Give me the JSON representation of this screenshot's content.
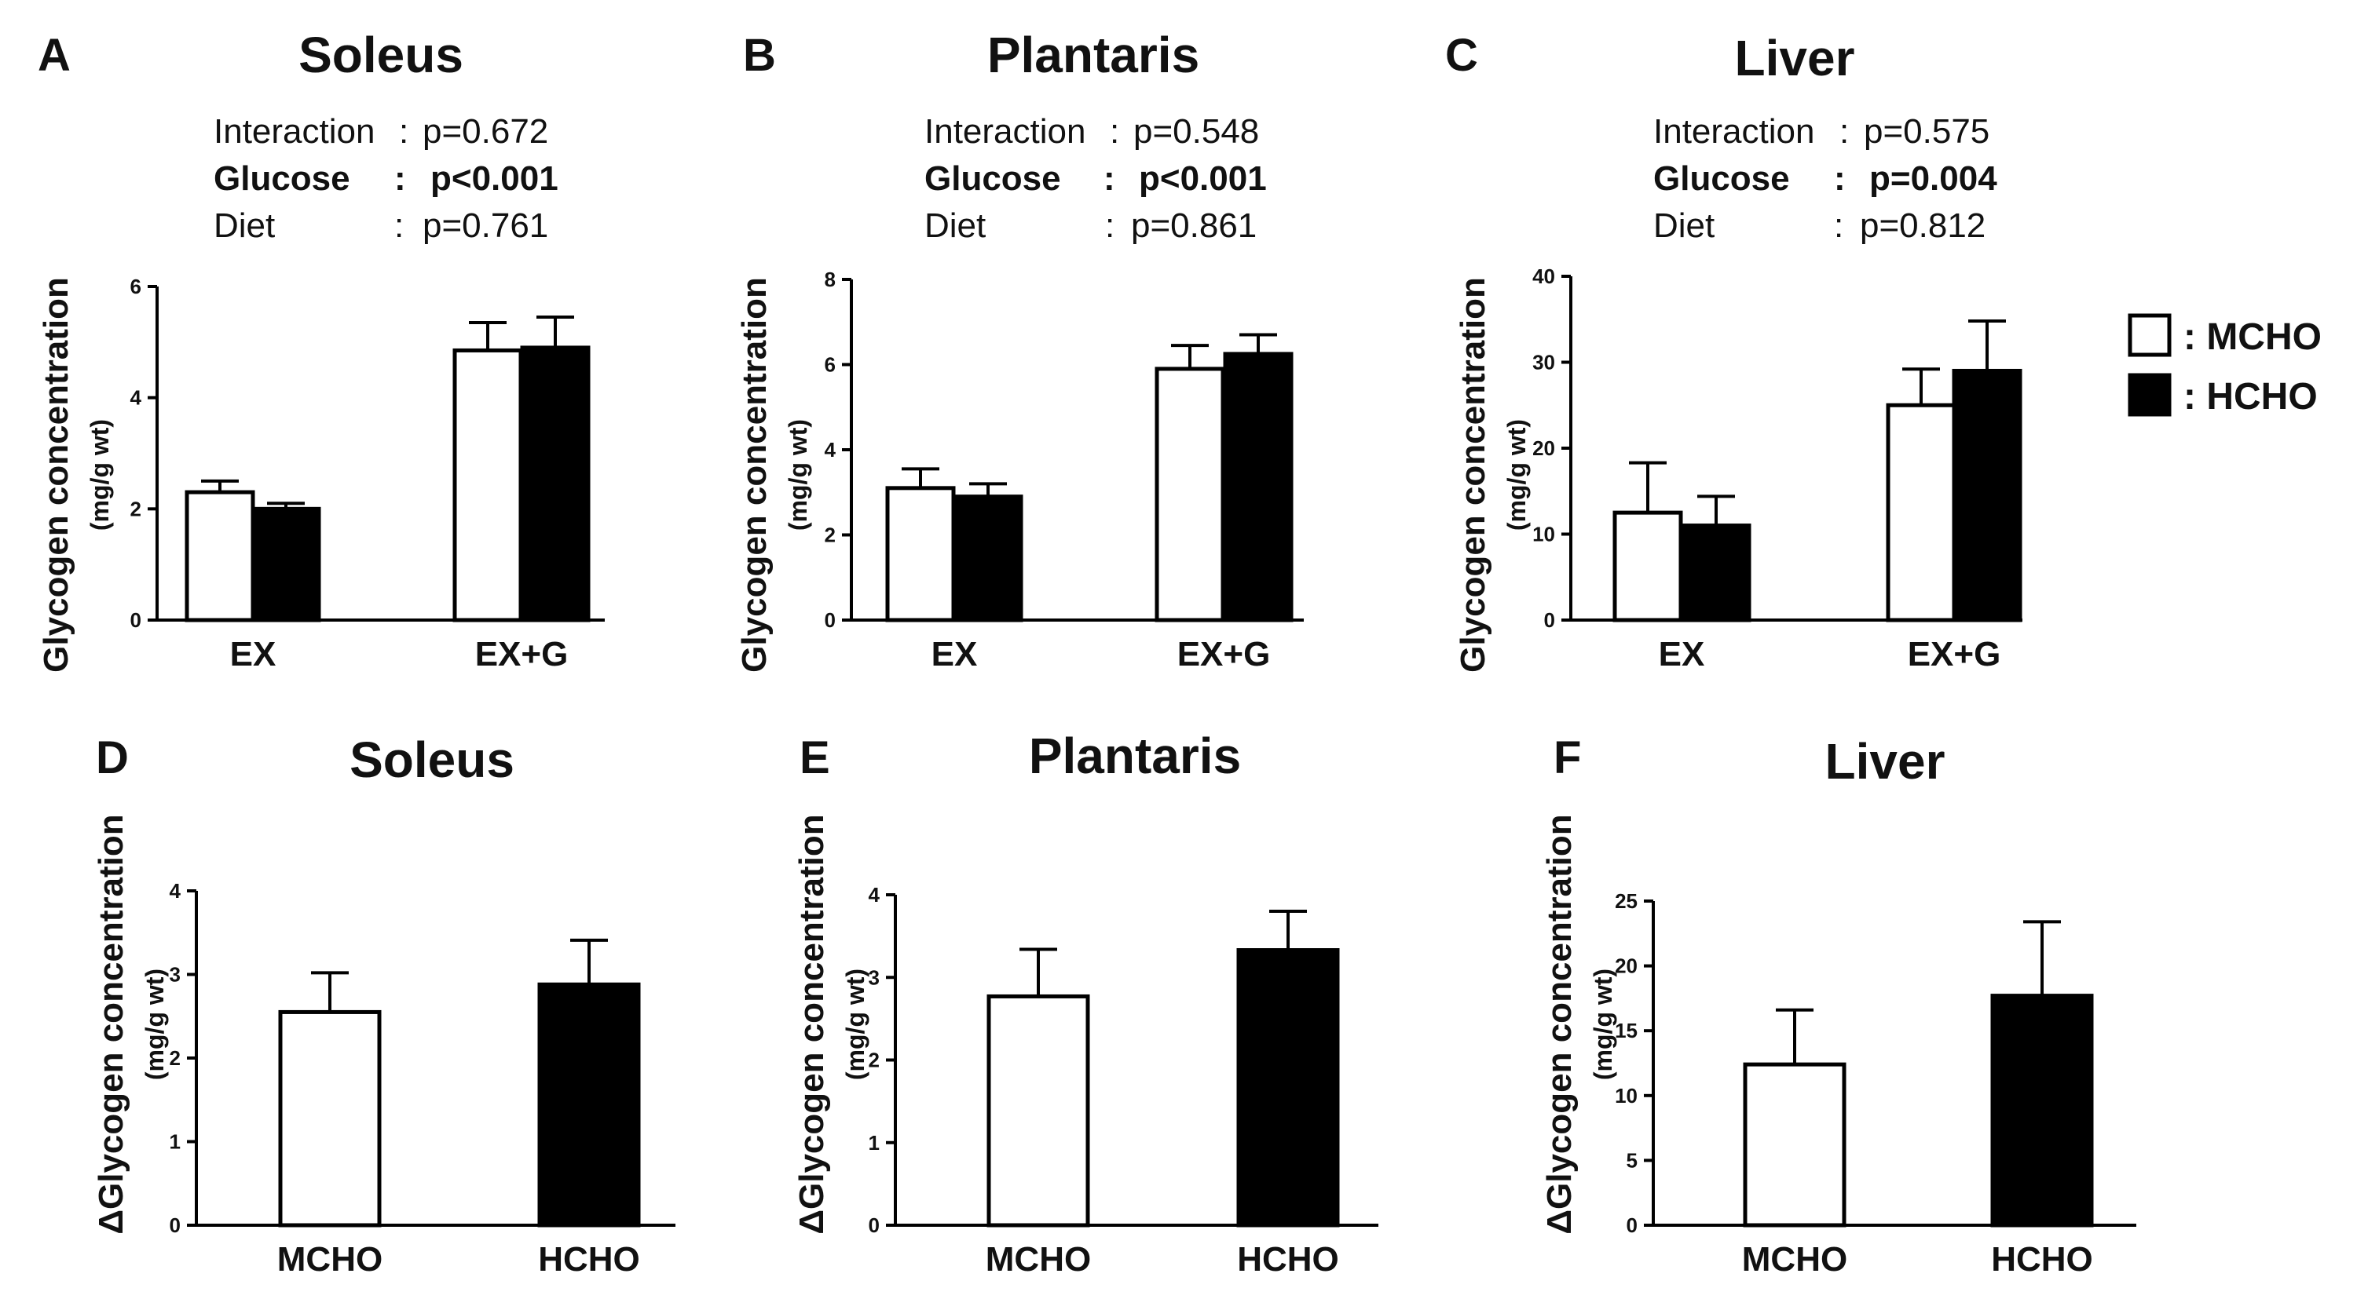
{
  "colors": {
    "mcho_fill": "#ffffff",
    "hcho_fill": "#000000",
    "stroke": "#000000"
  },
  "legend": [
    {
      "label": ": MCHO",
      "fill": "#ffffff"
    },
    {
      "label": ": HCHO",
      "fill": "#000000"
    }
  ],
  "chart_data": [
    {
      "panel": "A",
      "title": "Soleus",
      "type": "bar",
      "ylabel": "Glycogen concentration",
      "yunit": "(mg/g wt)",
      "ylim": [
        0,
        6
      ],
      "yticks": [
        0,
        2,
        4,
        6
      ],
      "categories": [
        "EX",
        "EX+G"
      ],
      "series": [
        {
          "name": "MCHO",
          "values": [
            2.3,
            4.85
          ],
          "errors": [
            0.2,
            0.5
          ]
        },
        {
          "name": "HCHO",
          "values": [
            2.0,
            4.9
          ],
          "errors": [
            0.1,
            0.55
          ]
        }
      ],
      "stats": [
        {
          "label": "Interaction",
          "colon": ":",
          "value": "p=0.672",
          "bold": false
        },
        {
          "label": "Glucose",
          "colon": ":",
          "value": "p<0.001",
          "bold": true
        },
        {
          "label": "Diet",
          "colon": ":",
          "value": "p=0.761",
          "bold": false
        }
      ]
    },
    {
      "panel": "B",
      "title": "Plantaris",
      "type": "bar",
      "ylabel": "Glycogen concentration",
      "yunit": "(mg/g wt)",
      "ylim": [
        0,
        8
      ],
      "yticks": [
        0,
        2,
        4,
        6,
        8
      ],
      "categories": [
        "EX",
        "EX+G"
      ],
      "series": [
        {
          "name": "MCHO",
          "values": [
            3.1,
            5.9
          ],
          "errors": [
            0.45,
            0.55
          ]
        },
        {
          "name": "HCHO",
          "values": [
            2.9,
            6.25
          ],
          "errors": [
            0.3,
            0.45
          ]
        }
      ],
      "stats": [
        {
          "label": "Interaction",
          "colon": ":",
          "value": "p=0.548",
          "bold": false
        },
        {
          "label": "Glucose",
          "colon": ":",
          "value": "p<0.001",
          "bold": true
        },
        {
          "label": "Diet",
          "colon": ":",
          "value": "p=0.861",
          "bold": false
        }
      ]
    },
    {
      "panel": "C",
      "title": "Liver",
      "type": "bar",
      "ylabel": "Glycogen concentration",
      "yunit": "(mg/g wt)",
      "ylim": [
        0,
        40
      ],
      "yticks": [
        0,
        10,
        20,
        30,
        40
      ],
      "categories": [
        "EX",
        "EX+G"
      ],
      "series": [
        {
          "name": "MCHO",
          "values": [
            12.5,
            25.0
          ],
          "errors": [
            5.8,
            4.2
          ]
        },
        {
          "name": "HCHO",
          "values": [
            11.0,
            29.0
          ],
          "errors": [
            3.4,
            5.8
          ]
        }
      ],
      "stats": [
        {
          "label": "Interaction",
          "colon": ":",
          "value": "p=0.575",
          "bold": false
        },
        {
          "label": "Glucose",
          "colon": ":",
          "value": "p=0.004",
          "bold": true
        },
        {
          "label": "Diet",
          "colon": ":",
          "value": "p=0.812",
          "bold": false
        }
      ]
    },
    {
      "panel": "D",
      "title": "Soleus",
      "type": "bar",
      "ylabel": "ΔGlycogen concentration",
      "yunit": "(mg/g wt)",
      "ylim": [
        0,
        4
      ],
      "yticks": [
        0,
        1,
        2,
        3,
        4
      ],
      "categories": [
        "MCHO",
        "HCHO"
      ],
      "values": [
        2.55,
        2.88
      ],
      "errors": [
        0.47,
        0.53
      ],
      "fills": [
        "#ffffff",
        "#000000"
      ]
    },
    {
      "panel": "E",
      "title": "Plantaris",
      "type": "bar",
      "ylabel": "ΔGlycogen concentration",
      "yunit": "(mg/g wt)",
      "ylim": [
        0,
        4
      ],
      "yticks": [
        0,
        1,
        2,
        3,
        4
      ],
      "categories": [
        "MCHO",
        "HCHO"
      ],
      "values": [
        2.77,
        3.33
      ],
      "errors": [
        0.57,
        0.47
      ],
      "fills": [
        "#ffffff",
        "#000000"
      ]
    },
    {
      "panel": "F",
      "title": "Liver",
      "type": "bar",
      "ylabel": "ΔGlycogen concentration",
      "yunit": "(mg/g wt)",
      "ylim": [
        0,
        25
      ],
      "yticks": [
        0,
        5,
        10,
        15,
        20,
        25
      ],
      "categories": [
        "MCHO",
        "HCHO"
      ],
      "values": [
        12.4,
        17.7
      ],
      "errors": [
        4.2,
        5.7
      ],
      "fills": [
        "#ffffff",
        "#000000"
      ]
    }
  ]
}
